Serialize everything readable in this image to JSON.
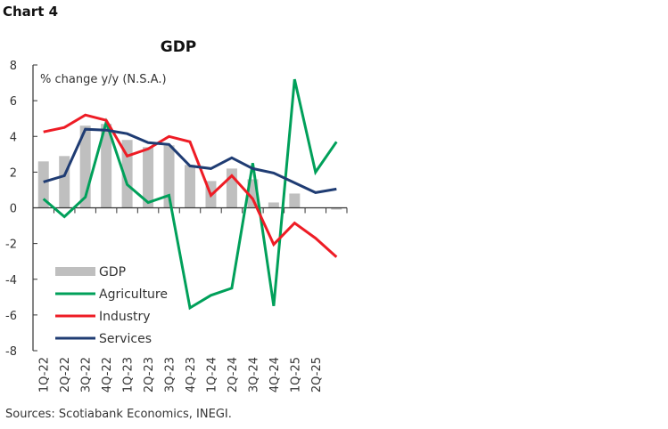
{
  "header": {
    "chart_label": "Chart 4"
  },
  "footer": {
    "sources": "Sources: Scotiabank Economics, INEGI."
  },
  "chart_data": {
    "type": "bar+line",
    "title": "GDP",
    "ylabel": "% change y/y (N.S.A.)",
    "xlabel": "",
    "ylim": [
      -8,
      8
    ],
    "yticks": [
      8,
      6,
      4,
      2,
      0,
      -2,
      -4,
      -6,
      -8
    ],
    "grid": false,
    "legend": "bottom-left",
    "categories": [
      "1Q-22",
      "2Q-22",
      "3Q-22",
      "4Q-22",
      "1Q-23",
      "2Q-23",
      "3Q-23",
      "4Q-23",
      "1Q-24",
      "2Q-24",
      "3Q-24",
      "4Q-24",
      "1Q-25",
      "2Q-25",
      "3Q-25"
    ],
    "tick_labels": [
      "1Q-22",
      "2Q-22",
      "3Q-22",
      "4Q-22",
      "1Q-23",
      "2Q-23",
      "3Q-23",
      "4Q-23",
      "1Q-24",
      "2Q-24",
      "3Q-24",
      "4Q-24",
      "1Q-25",
      "2Q-25",
      ""
    ],
    "series": [
      {
        "name": "GDP",
        "kind": "bar",
        "color": "#bfbfbf",
        "values": [
          2.6,
          2.9,
          4.6,
          4.7,
          3.8,
          3.4,
          3.5,
          2.4,
          1.5,
          2.2,
          1.6,
          0.3,
          0.8,
          0.0,
          -0.1
        ]
      },
      {
        "name": "Agriculture",
        "kind": "line",
        "color": "#00a05a",
        "values": [
          0.5,
          -0.5,
          0.6,
          4.8,
          1.3,
          0.3,
          0.7,
          -5.6,
          -4.9,
          -4.5,
          2.5,
          -5.5,
          7.2,
          2.0,
          3.7
        ]
      },
      {
        "name": "Industry",
        "kind": "line",
        "color": "#ee1c25",
        "values": [
          4.25,
          4.5,
          5.2,
          4.9,
          2.9,
          3.3,
          4.0,
          3.7,
          0.7,
          1.8,
          0.5,
          -2.05,
          -0.85,
          -1.7,
          -2.75
        ]
      },
      {
        "name": "Services",
        "kind": "line",
        "color": "#1f3c73",
        "values": [
          1.45,
          1.8,
          4.4,
          4.35,
          4.15,
          3.65,
          3.55,
          2.35,
          2.2,
          2.8,
          2.2,
          1.95,
          1.4,
          0.85,
          1.05
        ]
      }
    ]
  }
}
